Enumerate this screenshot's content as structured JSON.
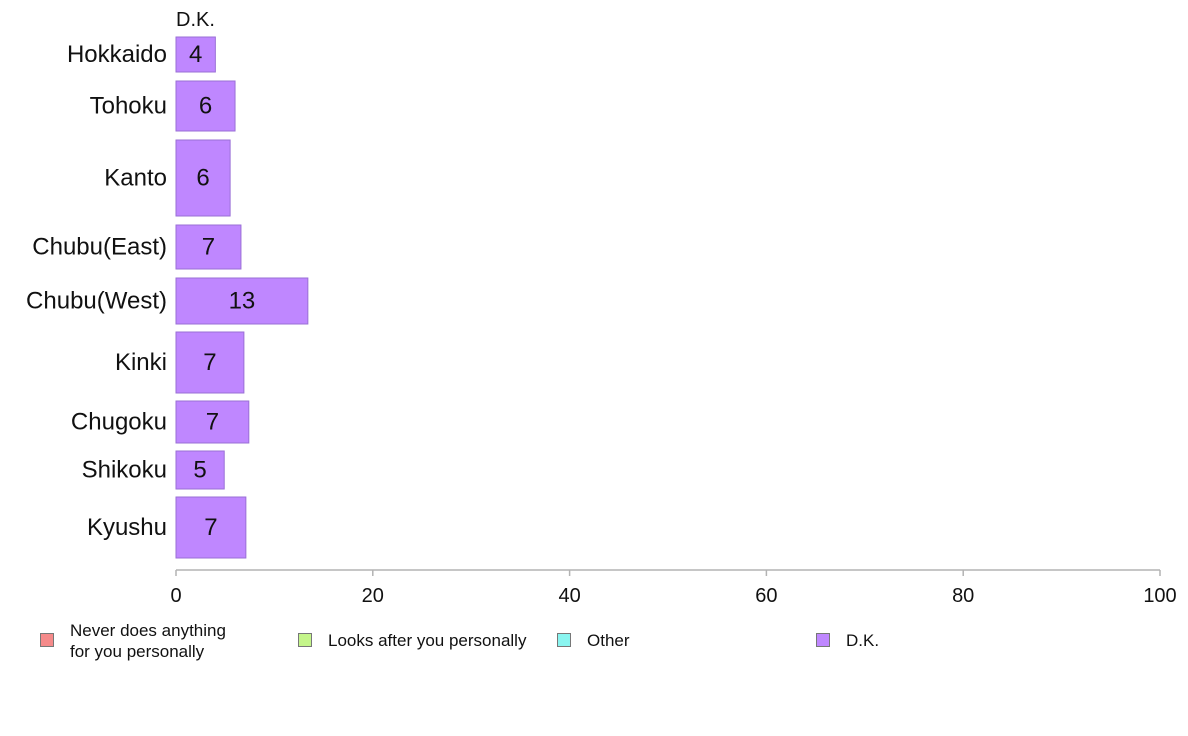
{
  "chart_data": {
    "type": "bar",
    "orientation": "horizontal",
    "series_title": "D.K.",
    "categories": [
      "Hokkaido",
      "Tohoku",
      "Kanto",
      "Chubu(East)",
      "Chubu(West)",
      "Kinki",
      "Chugoku",
      "Shikoku",
      "Kyushu"
    ],
    "values": [
      4,
      6,
      6,
      7,
      13,
      7,
      7,
      5,
      7
    ],
    "bar_lengths": [
      4.0,
      6.0,
      5.5,
      6.6,
      13.4,
      6.9,
      7.4,
      4.9,
      7.1
    ],
    "bar_color": "#bf87ff",
    "bar_border": "#9a6fd6",
    "xlim": [
      0,
      100
    ],
    "xticks": [
      0,
      20,
      40,
      60,
      80,
      100
    ],
    "grid": false,
    "legend_position": "bottom",
    "legend": [
      {
        "label": "Never does anything\nfor you personally",
        "color": "#f58a8a"
      },
      {
        "label": "Looks after you personally",
        "color": "#c4f58a"
      },
      {
        "label": "Other",
        "color": "#8af5f0"
      },
      {
        "label": "D.K.",
        "color": "#bf87ff"
      }
    ]
  }
}
